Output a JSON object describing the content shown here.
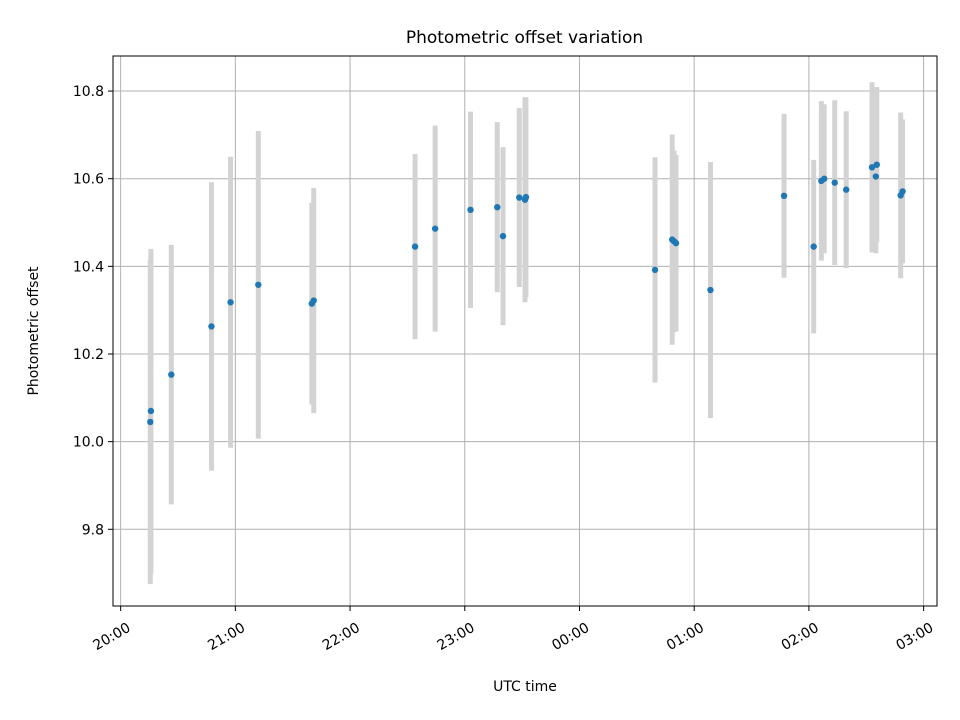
{
  "chart_data": {
    "type": "scatter",
    "title": "Photometric offset variation",
    "xlabel": "UTC time",
    "ylabel": "Photometric offset",
    "grid": true,
    "legend": "none",
    "colors": {
      "point": "#1f77b4",
      "errorbar": "#d3d3d3",
      "grid": "#b0b0b0",
      "axes": "#000000"
    },
    "xlim": [
      "2000-01-01T19:56:00",
      "2000-01-02T03:07:00"
    ],
    "ylim": [
      9.625,
      10.88
    ],
    "x_ticks": [
      {
        "t": "2000-01-01T20:00:00",
        "label": "20:00"
      },
      {
        "t": "2000-01-01T21:00:00",
        "label": "21:00"
      },
      {
        "t": "2000-01-01T22:00:00",
        "label": "22:00"
      },
      {
        "t": "2000-01-01T23:00:00",
        "label": "23:00"
      },
      {
        "t": "2000-01-02T00:00:00",
        "label": "00:00"
      },
      {
        "t": "2000-01-02T01:00:00",
        "label": "01:00"
      },
      {
        "t": "2000-01-02T02:00:00",
        "label": "02:00"
      },
      {
        "t": "2000-01-02T03:00:00",
        "label": "03:00"
      }
    ],
    "y_ticks": [
      9.8,
      10.0,
      10.2,
      10.4,
      10.6,
      10.8
    ],
    "series": [
      {
        "points": [
          {
            "x": "2000-01-01T20:15:30",
            "y": 10.045,
            "lo": 9.675,
            "hi": 10.415
          },
          {
            "x": "2000-01-01T20:15:50",
            "y": 10.07,
            "lo": 9.7,
            "hi": 10.44
          },
          {
            "x": "2000-01-01T20:26:30",
            "y": 10.153,
            "lo": 9.857,
            "hi": 10.449
          },
          {
            "x": "2000-01-01T20:47:30",
            "y": 10.263,
            "lo": 9.934,
            "hi": 10.592
          },
          {
            "x": "2000-01-01T20:57:30",
            "y": 10.318,
            "lo": 9.986,
            "hi": 10.65
          },
          {
            "x": "2000-01-01T21:12:00",
            "y": 10.358,
            "lo": 10.007,
            "hi": 10.709
          },
          {
            "x": "2000-01-01T21:40:00",
            "y": 10.315,
            "lo": 10.085,
            "hi": 10.545
          },
          {
            "x": "2000-01-01T21:41:00",
            "y": 10.322,
            "lo": 10.065,
            "hi": 10.579
          },
          {
            "x": "2000-01-01T22:34:00",
            "y": 10.445,
            "lo": 10.234,
            "hi": 10.656
          },
          {
            "x": "2000-01-01T22:44:30",
            "y": 10.486,
            "lo": 10.251,
            "hi": 10.721
          },
          {
            "x": "2000-01-01T23:03:00",
            "y": 10.529,
            "lo": 10.305,
            "hi": 10.753
          },
          {
            "x": "2000-01-01T23:17:00",
            "y": 10.535,
            "lo": 10.341,
            "hi": 10.729
          },
          {
            "x": "2000-01-01T23:20:00",
            "y": 10.469,
            "lo": 10.266,
            "hi": 10.672
          },
          {
            "x": "2000-01-01T23:28:30",
            "y": 10.557,
            "lo": 10.353,
            "hi": 10.761
          },
          {
            "x": "2000-01-01T23:31:30",
            "y": 10.552,
            "lo": 10.318,
            "hi": 10.786
          },
          {
            "x": "2000-01-01T23:32:00",
            "y": 10.558,
            "lo": 10.33,
            "hi": 10.786
          },
          {
            "x": "2000-01-02T00:39:30",
            "y": 10.392,
            "lo": 10.135,
            "hi": 10.649
          },
          {
            "x": "2000-01-02T00:48:30",
            "y": 10.461,
            "lo": 10.221,
            "hi": 10.701
          },
          {
            "x": "2000-01-02T00:49:30",
            "y": 10.457,
            "lo": 10.25,
            "hi": 10.664
          },
          {
            "x": "2000-01-02T00:50:30",
            "y": 10.453,
            "lo": 10.252,
            "hi": 10.654
          },
          {
            "x": "2000-01-02T01:08:30",
            "y": 10.346,
            "lo": 10.054,
            "hi": 10.638
          },
          {
            "x": "2000-01-02T01:47:00",
            "y": 10.561,
            "lo": 10.374,
            "hi": 10.748
          },
          {
            "x": "2000-01-02T02:02:30",
            "y": 10.445,
            "lo": 10.247,
            "hi": 10.643
          },
          {
            "x": "2000-01-02T02:06:30",
            "y": 10.595,
            "lo": 10.413,
            "hi": 10.777
          },
          {
            "x": "2000-01-02T02:08:00",
            "y": 10.6,
            "lo": 10.43,
            "hi": 10.77
          },
          {
            "x": "2000-01-02T02:13:30",
            "y": 10.591,
            "lo": 10.403,
            "hi": 10.779
          },
          {
            "x": "2000-01-02T02:19:30",
            "y": 10.575,
            "lo": 10.396,
            "hi": 10.754
          },
          {
            "x": "2000-01-02T02:33:00",
            "y": 10.626,
            "lo": 10.432,
            "hi": 10.82
          },
          {
            "x": "2000-01-02T02:35:00",
            "y": 10.605,
            "lo": 10.43,
            "hi": 10.78
          },
          {
            "x": "2000-01-02T02:35:30",
            "y": 10.632,
            "lo": 10.455,
            "hi": 10.809
          },
          {
            "x": "2000-01-02T02:48:00",
            "y": 10.562,
            "lo": 10.373,
            "hi": 10.751
          },
          {
            "x": "2000-01-02T02:49:00",
            "y": 10.571,
            "lo": 10.407,
            "hi": 10.735
          }
        ]
      }
    ]
  }
}
